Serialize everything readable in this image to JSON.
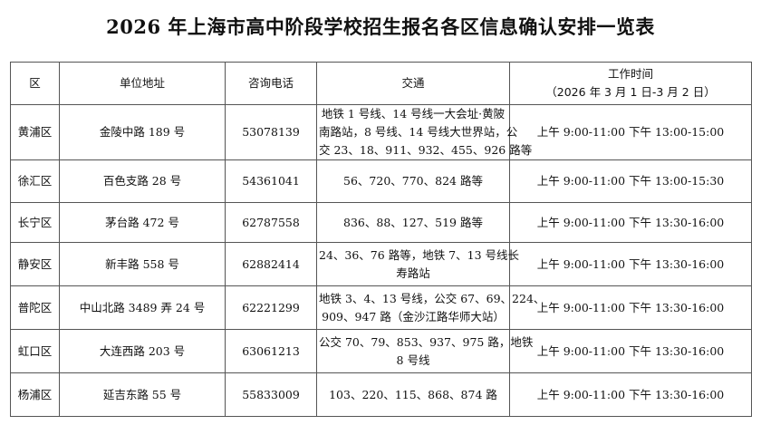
{
  "title": "2026 年上海市高中阶段学校招生报名各区信息确认安排一览表",
  "headers": {
    "district": "区",
    "address": "单位地址",
    "phone": "咨询电话",
    "transit": "交通",
    "hours": "工作时间",
    "hours_sub": "（2026 年 3 月 1 日-3 月 2 日）"
  },
  "rows": [
    {
      "district": "黄浦区",
      "address": "金陵中路 189 号",
      "phone": "53078139",
      "transit": [
        "地铁 1 号线、14 号线一大会址·黄陂",
        "南路站，8 号线、14 号线大世界站，公",
        "交 23、18、911、932、455、926 路等"
      ],
      "hours": "上午 9:00-11:00 下午 13:00-15:00"
    },
    {
      "district": "徐汇区",
      "address": "百色支路 28 号",
      "phone": "54361041",
      "transit": [
        "56、720、770、824 路等"
      ],
      "hours": "上午 9:00-11:00 下午 13:00-15:30"
    },
    {
      "district": "长宁区",
      "address": "茅台路 472 号",
      "phone": "62787558",
      "transit": [
        "836、88、127、519 路等"
      ],
      "hours": "上午 9:00-11:00 下午 13:30-16:00"
    },
    {
      "district": "静安区",
      "address": "新丰路 558 号",
      "phone": "62882414",
      "transit": [
        "24、36、76 路等，地铁 7、13 号线长",
        "寿路站"
      ],
      "hours": "上午 9:00-11:00 下午 13:30-16:00"
    },
    {
      "district": "普陀区",
      "address": "中山北路 3489 弄 24 号",
      "phone": "62221299",
      "transit": [
        "地铁 3、4、13 号线，公交 67、69、224、",
        "909、947 路（金沙江路华师大站）"
      ],
      "hours": "上午 9:00-11:00 下午 13:30-16:00"
    },
    {
      "district": "虹口区",
      "address": "大连西路 203 号",
      "phone": "63061213",
      "transit": [
        "公交 70、79、853、937、975 路，地铁",
        "8 号线"
      ],
      "hours": "上午 9:00-11:00 下午 13:30-16:00"
    },
    {
      "district": "杨浦区",
      "address": "延吉东路 55 号",
      "phone": "55833009",
      "transit": [
        "103、220、115、868、874 路"
      ],
      "hours": "上午 9:00-11:00 下午 13:30-16:00"
    }
  ]
}
